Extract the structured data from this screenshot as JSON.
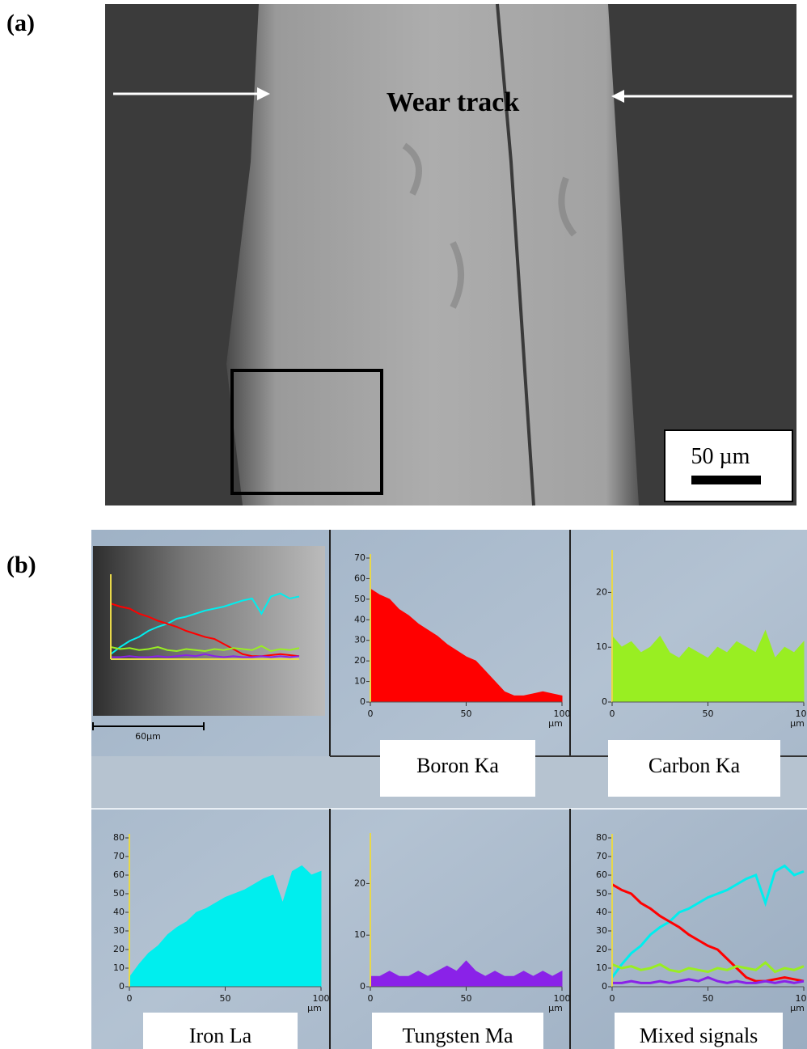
{
  "figure": {
    "label_a": "(a)",
    "label_b": "(b)",
    "wear_track": "Wear track",
    "scale_bar": "50 µm",
    "inset_scale": "60µm"
  },
  "chart_data": [
    {
      "type": "area",
      "title": "Boron Ka",
      "xlabel": "µm",
      "x": [
        0,
        5,
        10,
        15,
        20,
        25,
        30,
        35,
        40,
        45,
        50,
        55,
        60,
        65,
        70,
        75,
        80,
        85,
        90,
        95,
        100
      ],
      "series": [
        {
          "color": "#ff0000",
          "values": [
            55,
            52,
            50,
            45,
            42,
            38,
            35,
            32,
            28,
            25,
            22,
            20,
            15,
            10,
            5,
            3,
            3,
            4,
            5,
            4,
            3
          ]
        }
      ],
      "xlim": [
        0,
        100
      ],
      "ylim": [
        0,
        70
      ],
      "xticks": [
        0,
        50,
        100
      ],
      "yticks": [
        0,
        10,
        20,
        30,
        40,
        50,
        60,
        70
      ]
    },
    {
      "type": "area",
      "title": "Carbon Ka",
      "xlabel": "µm",
      "x": [
        0,
        5,
        10,
        15,
        20,
        25,
        30,
        35,
        40,
        45,
        50,
        55,
        60,
        65,
        70,
        75,
        80,
        85,
        90,
        95,
        100
      ],
      "series": [
        {
          "color": "#99ee22",
          "values": [
            12,
            10,
            11,
            9,
            10,
            12,
            9,
            8,
            10,
            9,
            8,
            10,
            9,
            11,
            10,
            9,
            13,
            8,
            10,
            9,
            11
          ]
        }
      ],
      "xlim": [
        0,
        100
      ],
      "ylim": [
        0,
        27
      ],
      "xticks": [
        0,
        50,
        100
      ],
      "yticks": [
        0,
        10,
        20
      ]
    },
    {
      "type": "area",
      "title": "Iron La",
      "xlabel": "µm",
      "x": [
        0,
        5,
        10,
        15,
        20,
        25,
        30,
        35,
        40,
        45,
        50,
        55,
        60,
        65,
        70,
        75,
        80,
        85,
        90,
        95,
        100
      ],
      "series": [
        {
          "color": "#00eeee",
          "values": [
            5,
            12,
            18,
            22,
            28,
            32,
            35,
            40,
            42,
            45,
            48,
            50,
            52,
            55,
            58,
            60,
            45,
            62,
            65,
            60,
            62
          ]
        }
      ],
      "xlim": [
        0,
        100
      ],
      "ylim": [
        0,
        80
      ],
      "xticks": [
        0,
        50,
        100
      ],
      "yticks": [
        0,
        10,
        20,
        30,
        40,
        50,
        60,
        70,
        80
      ]
    },
    {
      "type": "area",
      "title": "Tungsten Ma",
      "xlabel": "µm",
      "x": [
        0,
        5,
        10,
        15,
        20,
        25,
        30,
        35,
        40,
        45,
        50,
        55,
        60,
        65,
        70,
        75,
        80,
        85,
        90,
        95,
        100
      ],
      "series": [
        {
          "color": "#8a22e8",
          "values": [
            2,
            2,
            3,
            2,
            2,
            3,
            2,
            3,
            4,
            3,
            5,
            3,
            2,
            3,
            2,
            2,
            3,
            2,
            3,
            2,
            3
          ]
        }
      ],
      "xlim": [
        0,
        100
      ],
      "ylim": [
        0,
        29
      ],
      "xticks": [
        0,
        50,
        100
      ],
      "yticks": [
        0,
        10,
        20
      ]
    },
    {
      "type": "line",
      "title": "Mixed signals",
      "xlabel": "µm",
      "x": [
        0,
        5,
        10,
        15,
        20,
        25,
        30,
        35,
        40,
        45,
        50,
        55,
        60,
        65,
        70,
        75,
        80,
        85,
        90,
        95,
        100
      ],
      "series": [
        {
          "color": "#00eeee",
          "values": [
            5,
            12,
            18,
            22,
            28,
            32,
            35,
            40,
            42,
            45,
            48,
            50,
            52,
            55,
            58,
            60,
            45,
            62,
            65,
            60,
            62
          ]
        },
        {
          "color": "#ff0000",
          "values": [
            55,
            52,
            50,
            45,
            42,
            38,
            35,
            32,
            28,
            25,
            22,
            20,
            15,
            10,
            5,
            3,
            3,
            4,
            5,
            4,
            3
          ]
        },
        {
          "color": "#99ee22",
          "values": [
            12,
            10,
            11,
            9,
            10,
            12,
            9,
            8,
            10,
            9,
            8,
            10,
            9,
            11,
            10,
            9,
            13,
            8,
            10,
            9,
            11
          ]
        },
        {
          "color": "#8a22e8",
          "values": [
            2,
            2,
            3,
            2,
            2,
            3,
            2,
            3,
            4,
            3,
            5,
            3,
            2,
            3,
            2,
            2,
            3,
            2,
            3,
            2,
            3
          ]
        }
      ],
      "xlim": [
        0,
        100
      ],
      "ylim": [
        0,
        80
      ],
      "xticks": [
        0,
        50,
        100
      ],
      "yticks": [
        0,
        10,
        20,
        30,
        40,
        50,
        60,
        70,
        80
      ]
    }
  ]
}
